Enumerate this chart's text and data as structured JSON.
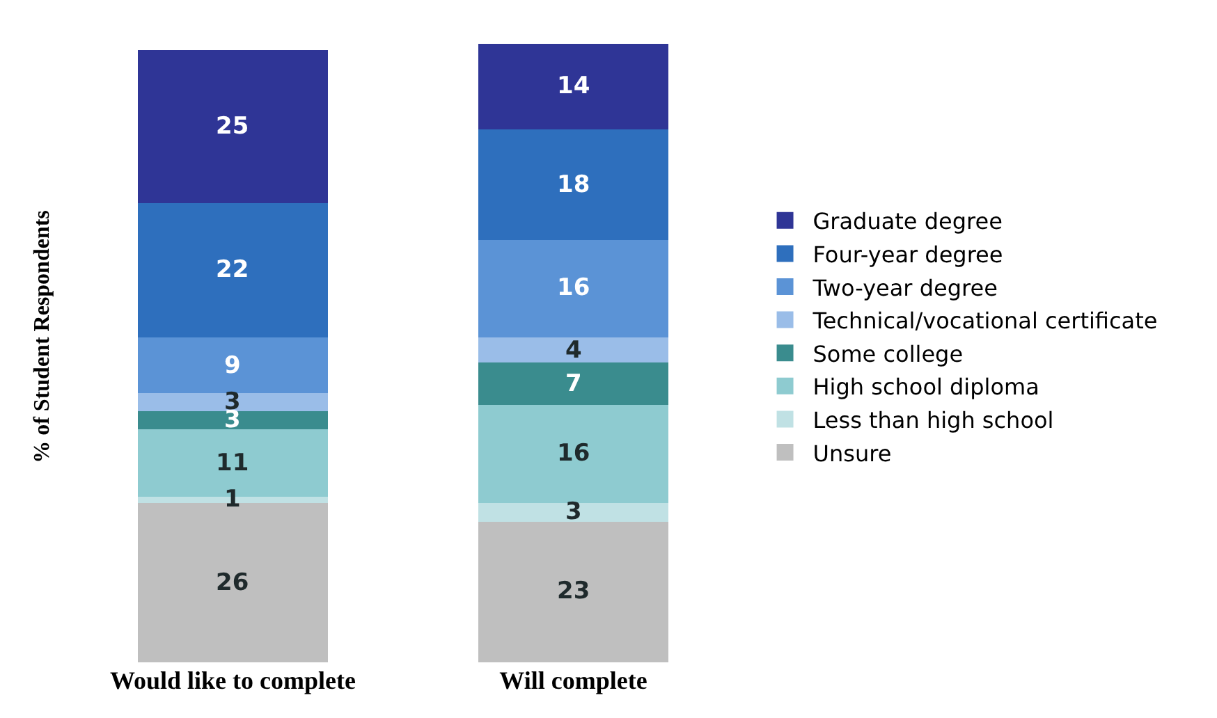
{
  "chart_data": {
    "type": "bar",
    "stacked": true,
    "ylabel": "% of Student Respondents",
    "categories": [
      "Would like to complete",
      "Will complete"
    ],
    "series": [
      {
        "name": "Unsure",
        "color": "#bfbfbf",
        "values": [
          26,
          23
        ]
      },
      {
        "name": "Less than high school",
        "color": "#c0e1e4",
        "values": [
          1,
          3
        ]
      },
      {
        "name": "High school diploma",
        "color": "#8ecbd0",
        "values": [
          11,
          16
        ]
      },
      {
        "name": "Some college",
        "color": "#3a8c8e",
        "values": [
          3,
          7
        ]
      },
      {
        "name": "Technical/vocational certificate",
        "color": "#9abde8",
        "values": [
          3,
          4
        ]
      },
      {
        "name": "Two-year degree",
        "color": "#5b93d6",
        "values": [
          9,
          16
        ]
      },
      {
        "name": "Four-year degree",
        "color": "#2e6fbd",
        "values": [
          22,
          18
        ]
      },
      {
        "name": "Graduate degree",
        "color": "#2f3596",
        "values": [
          25,
          14
        ]
      }
    ],
    "data_labels": true,
    "legend": "right",
    "tick_labels": "x",
    "grid": false
  }
}
